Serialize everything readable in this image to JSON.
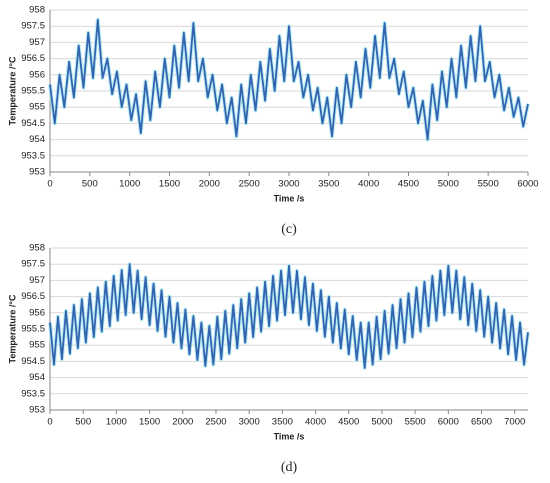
{
  "chart_data": [
    {
      "type": "line",
      "caption": "(c)",
      "xlabel": "Time /s",
      "ylabel": "Temperature /°C",
      "x": [
        0,
        60,
        120,
        180,
        240,
        300,
        360,
        420,
        480,
        540,
        600,
        660,
        720,
        780,
        840,
        900,
        960,
        1020,
        1080,
        1140,
        1200,
        1260,
        1320,
        1380,
        1440,
        1500,
        1560,
        1620,
        1680,
        1740,
        1800,
        1860,
        1920,
        1980,
        2040,
        2100,
        2160,
        2220,
        2280,
        2340,
        2400,
        2460,
        2520,
        2580,
        2640,
        2700,
        2760,
        2820,
        2880,
        2940,
        3000,
        3060,
        3120,
        3180,
        3240,
        3300,
        3360,
        3420,
        3480,
        3540,
        3600,
        3660,
        3720,
        3780,
        3840,
        3900,
        3960,
        4020,
        4080,
        4140,
        4200,
        4260,
        4320,
        4380,
        4440,
        4500,
        4560,
        4620,
        4680,
        4740,
        4800,
        4860,
        4920,
        4980,
        5040,
        5100,
        5160,
        5220,
        5280,
        5340,
        5400,
        5460,
        5520,
        5580,
        5640,
        5700,
        5760,
        5820,
        5880,
        5940,
        6000
      ],
      "series": [
        {
          "color": "#3463b0",
          "values": [
            955.7,
            954.5,
            956.0,
            955.0,
            956.4,
            955.3,
            956.9,
            955.6,
            957.3,
            955.9,
            957.7,
            955.9,
            956.5,
            955.4,
            956.1,
            955.0,
            955.7,
            954.6,
            955.4,
            954.2,
            955.8,
            954.6,
            956.1,
            955.0,
            956.5,
            955.3,
            956.9,
            955.6,
            957.3,
            955.8,
            957.6,
            955.8,
            956.5,
            955.3,
            956.0,
            954.9,
            955.7,
            954.5,
            955.3,
            954.1,
            955.7,
            954.5,
            956.0,
            954.9,
            956.4,
            955.2,
            956.8,
            955.5,
            957.2,
            955.8,
            957.5,
            955.8,
            956.4,
            955.3,
            956.0,
            954.9,
            955.6,
            954.5,
            955.3,
            954.1,
            955.6,
            954.5,
            956.0,
            955.0,
            956.4,
            955.3,
            956.8,
            955.6,
            957.2,
            955.9,
            957.6,
            955.9,
            956.5,
            955.4,
            956.1,
            955.0,
            955.6,
            954.5,
            955.2,
            954.0,
            955.7,
            954.6,
            956.1,
            955.0,
            956.5,
            955.3,
            956.9,
            955.6,
            957.2,
            955.8,
            957.5,
            955.8,
            956.4,
            955.3,
            956.0,
            954.9,
            955.6,
            954.7,
            955.3,
            954.4,
            955.1
          ]
        }
      ],
      "xlim": [
        0,
        6000
      ],
      "ylim": [
        953,
        958
      ],
      "xticks": [
        0,
        500,
        1000,
        1500,
        2000,
        2500,
        3000,
        3500,
        4000,
        4500,
        5000,
        5500,
        6000
      ],
      "yticks": [
        953,
        953.5,
        954,
        954.5,
        955,
        955.5,
        956,
        956.5,
        957,
        957.5,
        958
      ],
      "grid": true
    },
    {
      "type": "line",
      "caption": "(d)",
      "xlabel": "Time /s",
      "ylabel": "Temperature /°C",
      "x": [
        0,
        60,
        120,
        180,
        240,
        300,
        360,
        420,
        480,
        540,
        600,
        660,
        720,
        780,
        840,
        900,
        960,
        1020,
        1080,
        1140,
        1200,
        1260,
        1320,
        1380,
        1440,
        1500,
        1560,
        1620,
        1680,
        1740,
        1800,
        1860,
        1920,
        1980,
        2040,
        2100,
        2160,
        2220,
        2280,
        2340,
        2400,
        2460,
        2520,
        2580,
        2640,
        2700,
        2760,
        2820,
        2880,
        2940,
        3000,
        3060,
        3120,
        3180,
        3240,
        3300,
        3360,
        3420,
        3480,
        3540,
        3600,
        3660,
        3720,
        3780,
        3840,
        3900,
        3960,
        4020,
        4080,
        4140,
        4200,
        4260,
        4320,
        4380,
        4440,
        4500,
        4560,
        4620,
        4680,
        4740,
        4800,
        4860,
        4920,
        4980,
        5040,
        5100,
        5160,
        5220,
        5280,
        5340,
        5400,
        5460,
        5520,
        5580,
        5640,
        5700,
        5760,
        5820,
        5880,
        5940,
        6000,
        6060,
        6120,
        6180,
        6240,
        6300,
        6360,
        6420,
        6480,
        6540,
        6600,
        6660,
        6720,
        6780,
        6840,
        6900,
        6960,
        7020,
        7080,
        7140,
        7200
      ],
      "series": [
        {
          "color": "#3463b0",
          "values": [
            955.7,
            954.4,
            955.88,
            954.57,
            956.06,
            954.74,
            956.24,
            954.91,
            956.42,
            955.08,
            956.6,
            955.25,
            956.78,
            955.42,
            956.96,
            955.59,
            957.14,
            955.76,
            957.32,
            955.93,
            957.5,
            956.0,
            957.3,
            955.8,
            957.1,
            955.62,
            956.9,
            955.44,
            956.7,
            955.26,
            956.5,
            955.08,
            956.3,
            954.9,
            956.1,
            954.72,
            955.9,
            954.54,
            955.7,
            954.36,
            955.6,
            954.4,
            955.88,
            954.57,
            956.06,
            954.74,
            956.24,
            954.91,
            956.42,
            955.08,
            956.6,
            955.25,
            956.78,
            955.42,
            956.96,
            955.59,
            957.14,
            955.76,
            957.3,
            955.93,
            957.45,
            956.0,
            957.3,
            955.8,
            957.1,
            955.62,
            956.9,
            955.44,
            956.7,
            955.26,
            956.5,
            955.08,
            956.3,
            954.9,
            956.1,
            954.72,
            955.9,
            954.54,
            955.7,
            954.3,
            955.7,
            954.4,
            955.88,
            954.57,
            956.06,
            954.74,
            956.24,
            954.91,
            956.42,
            955.08,
            956.6,
            955.25,
            956.78,
            955.42,
            956.96,
            955.59,
            957.14,
            955.76,
            957.3,
            955.93,
            957.45,
            956.0,
            957.3,
            955.8,
            957.1,
            955.62,
            956.9,
            955.44,
            956.7,
            955.26,
            956.5,
            955.08,
            956.3,
            954.9,
            956.1,
            954.72,
            955.9,
            954.54,
            955.7,
            954.4,
            955.4
          ]
        }
      ],
      "xlim": [
        0,
        7200
      ],
      "ylim": [
        953,
        958
      ],
      "xticks": [
        0,
        500,
        1000,
        1500,
        2000,
        2500,
        3000,
        3500,
        4000,
        4500,
        5000,
        5500,
        6000,
        6500,
        7000
      ],
      "yticks": [
        953,
        953.5,
        954,
        954.5,
        955,
        955.5,
        956,
        956.5,
        957,
        957.5,
        958
      ],
      "grid": true
    }
  ]
}
